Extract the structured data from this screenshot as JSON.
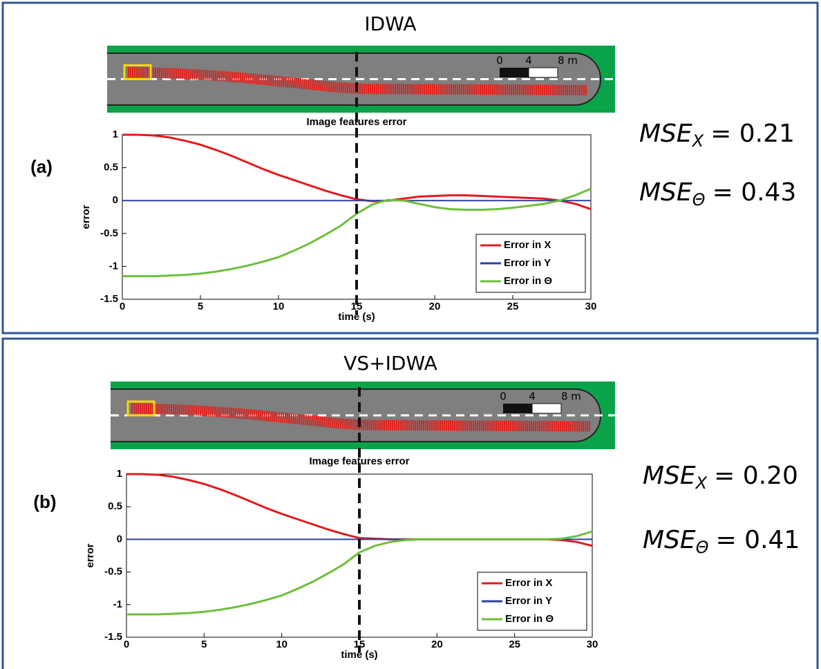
{
  "chart_data": [
    {
      "type": "line",
      "panel_title": "IDWA",
      "panel_label": "(a)",
      "title": "Image features error",
      "x_label": "time (s)",
      "y_label": "error",
      "scale_labels": [
        "0",
        "4",
        "8 m"
      ],
      "annotations": [
        {
          "text": "MSE",
          "subscript": "X",
          "rest": "= 0.21"
        },
        {
          "text": "MSE",
          "subscript": "Θ",
          "rest": "= 0.43"
        }
      ],
      "x": [
        0,
        1,
        2,
        3,
        4,
        5,
        6,
        7,
        8,
        9,
        10,
        11,
        12,
        13,
        14,
        15,
        16,
        17,
        18,
        19,
        20,
        21,
        22,
        23,
        24,
        25,
        26,
        27,
        28,
        29,
        30
      ],
      "series": [
        {
          "name": "Error in X",
          "color": "#e31a1c",
          "values": [
            1.0,
            1.0,
            0.99,
            0.96,
            0.91,
            0.85,
            0.77,
            0.68,
            0.58,
            0.48,
            0.39,
            0.31,
            0.23,
            0.15,
            0.08,
            0.02,
            -0.01,
            0.0,
            0.03,
            0.06,
            0.07,
            0.08,
            0.08,
            0.07,
            0.06,
            0.05,
            0.04,
            0.03,
            0.0,
            -0.05,
            -0.13
          ]
        },
        {
          "name": "Error in Y",
          "color": "#2b3f9e",
          "values": [
            0,
            0,
            0,
            0,
            0,
            0,
            0,
            0,
            0,
            0,
            0,
            0,
            0,
            0,
            0,
            0,
            0,
            0,
            0,
            0,
            0,
            0,
            0,
            0,
            0,
            0,
            0,
            0,
            0,
            0,
            0
          ]
        },
        {
          "name": "Error in Θ",
          "color": "#6cbf3a",
          "values": [
            -1.15,
            -1.15,
            -1.15,
            -1.14,
            -1.13,
            -1.11,
            -1.08,
            -1.04,
            -0.99,
            -0.93,
            -0.86,
            -0.76,
            -0.65,
            -0.52,
            -0.38,
            -0.2,
            -0.06,
            0.01,
            0.0,
            -0.05,
            -0.1,
            -0.13,
            -0.14,
            -0.14,
            -0.13,
            -0.11,
            -0.08,
            -0.05,
            0.0,
            0.08,
            0.18
          ]
        }
      ],
      "vline": 15,
      "xlim": [
        0,
        30
      ],
      "ylim": [
        -1.5,
        1
      ],
      "xticks": [
        0,
        5,
        10,
        15,
        20,
        25,
        30
      ],
      "yticks": [
        -1.5,
        -1,
        -0.5,
        0,
        0.5,
        1
      ],
      "legend": "lower right"
    },
    {
      "type": "line",
      "panel_title": "VS+IDWA",
      "panel_label": "(b)",
      "title": "Image features error",
      "x_label": "time (s)",
      "y_label": "error",
      "scale_labels": [
        "0",
        "4",
        "8 m"
      ],
      "annotations": [
        {
          "text": "MSE",
          "subscript": "X",
          "rest": "= 0.20"
        },
        {
          "text": "MSE",
          "subscript": "Θ",
          "rest": "= 0.41"
        }
      ],
      "x": [
        0,
        1,
        2,
        3,
        4,
        5,
        6,
        7,
        8,
        9,
        10,
        11,
        12,
        13,
        14,
        15,
        16,
        17,
        18,
        19,
        20,
        21,
        22,
        23,
        24,
        25,
        26,
        27,
        28,
        29,
        30
      ],
      "series": [
        {
          "name": "Error in X",
          "color": "#e31a1c",
          "values": [
            1.0,
            1.0,
            0.99,
            0.96,
            0.91,
            0.85,
            0.77,
            0.68,
            0.58,
            0.48,
            0.39,
            0.31,
            0.23,
            0.15,
            0.08,
            0.02,
            0.01,
            0,
            0,
            0,
            0,
            0,
            0,
            0,
            0,
            0,
            0,
            0,
            -0.01,
            -0.04,
            -0.1
          ]
        },
        {
          "name": "Error in Y",
          "color": "#2b3f9e",
          "values": [
            0,
            0,
            0,
            0,
            0,
            0,
            0,
            0,
            0,
            0,
            0,
            0,
            0,
            0,
            0,
            0,
            0,
            0,
            0,
            0,
            0,
            0,
            0,
            0,
            0,
            0,
            0,
            0,
            0,
            0,
            0
          ]
        },
        {
          "name": "Error in Θ",
          "color": "#6cbf3a",
          "values": [
            -1.15,
            -1.15,
            -1.15,
            -1.14,
            -1.13,
            -1.11,
            -1.08,
            -1.04,
            -0.99,
            -0.93,
            -0.86,
            -0.76,
            -0.65,
            -0.52,
            -0.38,
            -0.2,
            -0.1,
            -0.04,
            -0.01,
            0,
            0,
            0,
            0,
            0,
            0,
            0,
            0,
            0,
            0.01,
            0.05,
            0.12
          ]
        }
      ],
      "vline": 15,
      "xlim": [
        0,
        30
      ],
      "ylim": [
        -1.5,
        1
      ],
      "xticks": [
        0,
        5,
        10,
        15,
        20,
        25,
        30
      ],
      "yticks": [
        -1.5,
        -1,
        -0.5,
        0,
        0.5,
        1
      ],
      "legend": "lower right"
    }
  ]
}
